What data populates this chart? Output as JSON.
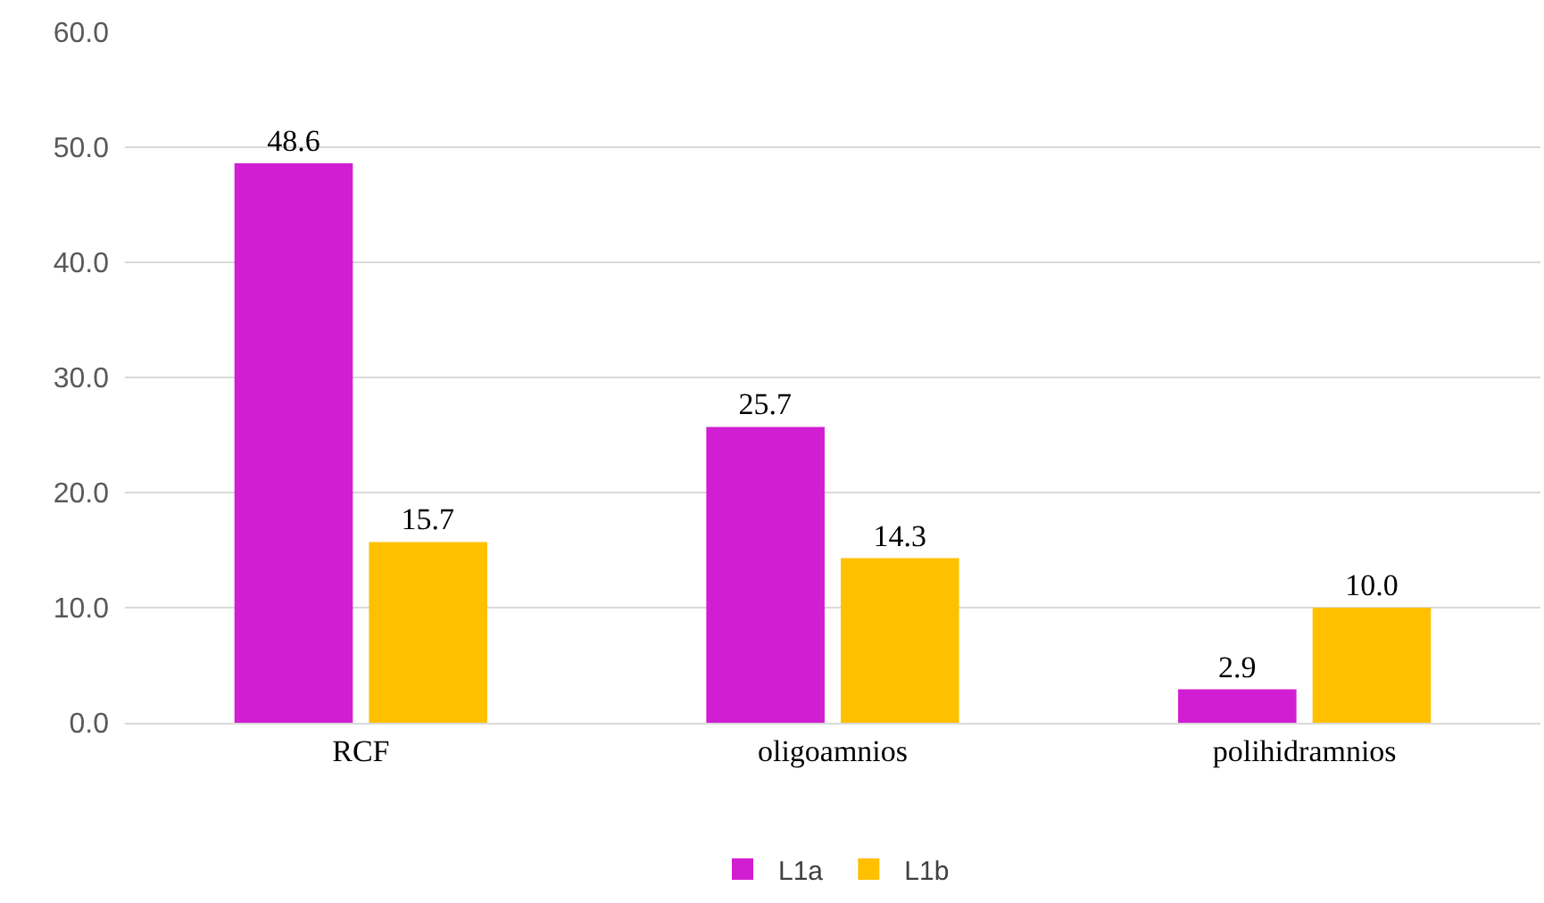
{
  "chart_data": {
    "type": "bar",
    "categories": [
      "RCF",
      "oligoamnios",
      "polihidramnios"
    ],
    "series": [
      {
        "name": "L1a",
        "color": "#d21ed2",
        "values": [
          48.6,
          25.7,
          2.9
        ],
        "value_labels": [
          "48.6",
          "25.7",
          "2.9"
        ]
      },
      {
        "name": "L1b",
        "color": "#ffc000",
        "values": [
          15.7,
          14.3,
          10.0
        ],
        "value_labels": [
          "15.7",
          "14.3",
          "10.0"
        ]
      }
    ],
    "ylim": [
      0,
      60
    ],
    "yticks": [
      {
        "value": 0,
        "label": "0.0"
      },
      {
        "value": 10,
        "label": "10.0"
      },
      {
        "value": 20,
        "label": "20.0"
      },
      {
        "value": 30,
        "label": "30.0"
      },
      {
        "value": 40,
        "label": "40.0"
      },
      {
        "value": 50,
        "label": "50.0"
      },
      {
        "value": 60,
        "label": "60.0"
      }
    ],
    "grid": "y",
    "legend": "bottom"
  }
}
